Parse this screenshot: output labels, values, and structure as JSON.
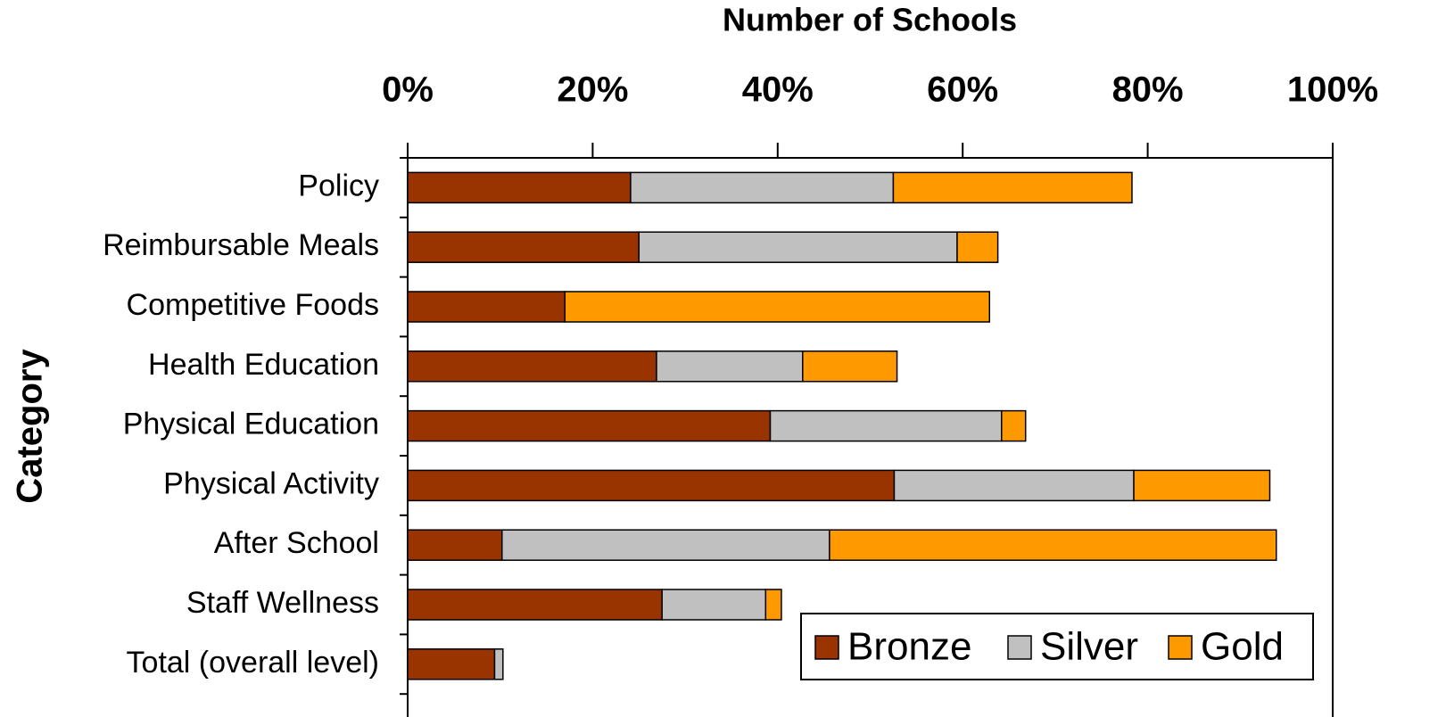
{
  "chart_data": {
    "type": "stacked_barh",
    "x_label": "Number of Schools",
    "y_label": "Category",
    "categories": [
      "Policy",
      "Reimbursable Meals",
      "Competitive Foods",
      "Health Education",
      "Physical Education",
      "Physical Activity",
      "After School",
      "Staff Wellness",
      "Total (overall level)"
    ],
    "series": [
      {
        "name": "Bronze",
        "color": "#993300",
        "values": [
          24.1,
          25.0,
          17.0,
          26.9,
          39.2,
          52.6,
          10.2,
          27.5,
          9.4
        ]
      },
      {
        "name": "Silver",
        "color": "#c0c0c0",
        "values": [
          28.4,
          34.4,
          0,
          15.8,
          25.0,
          25.9,
          35.4,
          11.2,
          0.9
        ]
      },
      {
        "name": "Gold",
        "color": "#ff9900",
        "values": [
          25.8,
          4.4,
          45.9,
          10.2,
          2.6,
          14.7,
          48.3,
          1.7,
          0
        ]
      }
    ],
    "xlim": [
      0,
      100
    ],
    "xticks": [
      {
        "value": 0,
        "label": "0%"
      },
      {
        "value": 20,
        "label": "20%"
      },
      {
        "value": 40,
        "label": "40%"
      },
      {
        "value": 60,
        "label": "60%"
      },
      {
        "value": 80,
        "label": "80%"
      },
      {
        "value": 100,
        "label": "100%"
      }
    ],
    "legend": "lower right"
  }
}
